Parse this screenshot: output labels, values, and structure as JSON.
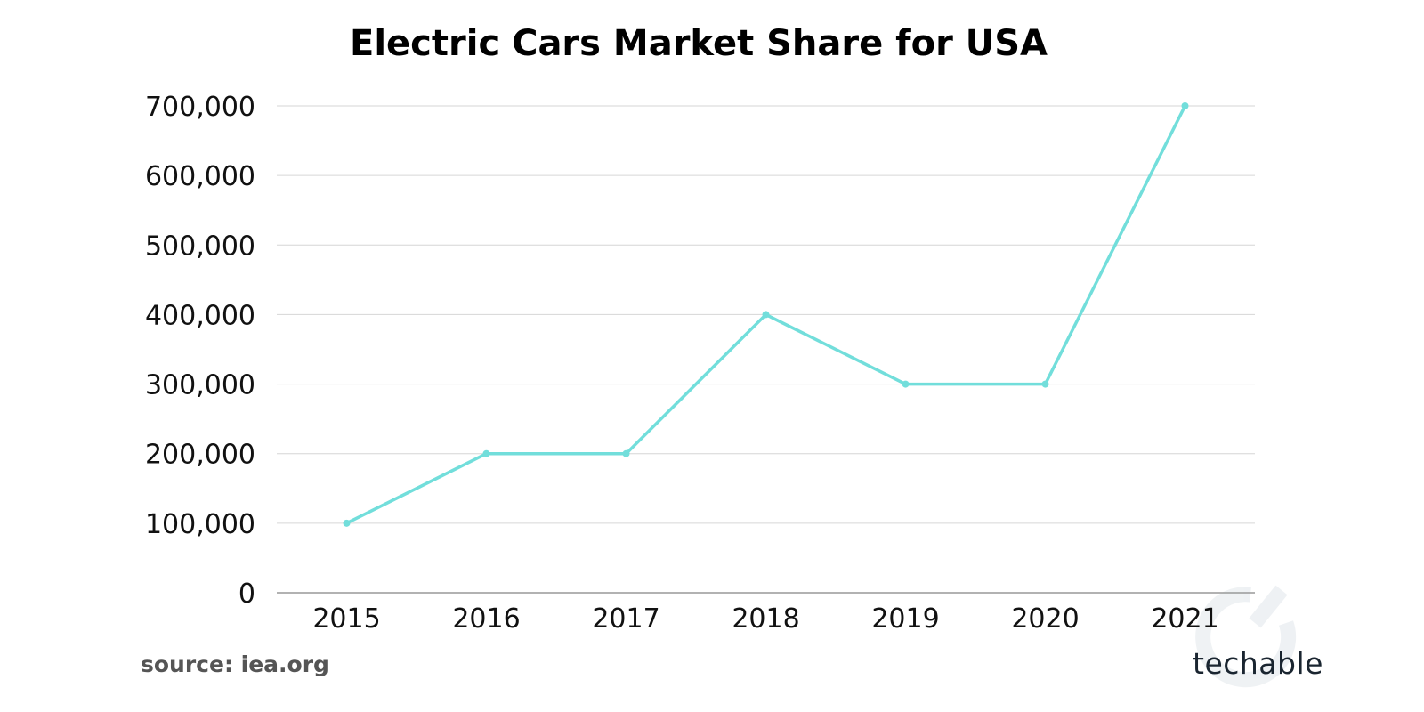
{
  "chart_data": {
    "type": "line",
    "title": "Electric Cars Market Share for USA",
    "xlabel": "",
    "ylabel": "",
    "categories": [
      "2015",
      "2016",
      "2017",
      "2018",
      "2019",
      "2020",
      "2021"
    ],
    "values": [
      100000,
      200000,
      200000,
      400000,
      300000,
      300000,
      700000
    ],
    "ylim": [
      0,
      700000
    ],
    "yticks": [
      0,
      100000,
      200000,
      300000,
      400000,
      500000,
      600000,
      700000
    ],
    "ytick_labels": [
      "0",
      "100,000",
      "200,000",
      "300,000",
      "400,000",
      "500,000",
      "600,000",
      "700,000"
    ],
    "grid": true,
    "legend": "none",
    "line_color": "#72DEDB"
  },
  "source": "source: iea.org",
  "logo": "techable"
}
